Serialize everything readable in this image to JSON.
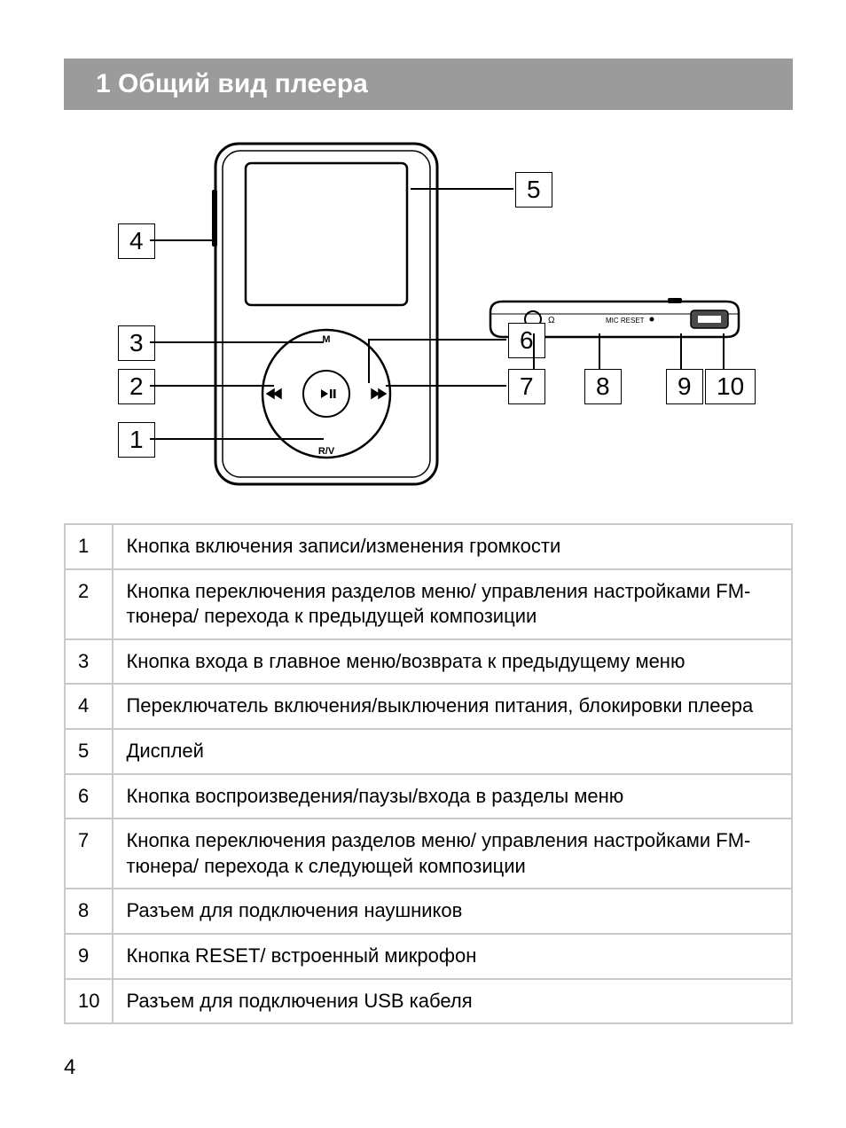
{
  "title": "1 Общий вид плеера",
  "page_number": "4",
  "callouts": {
    "c1": "1",
    "c2": "2",
    "c3": "3",
    "c4": "4",
    "c5": "5",
    "c6": "6",
    "c7": "7",
    "c8": "8",
    "c9": "9",
    "c10": "10"
  },
  "diagram": {
    "wheel_labels": {
      "m": "M",
      "rv": "R/V"
    },
    "side_labels": {
      "mic_reset": "MIC RESET"
    }
  },
  "table": {
    "rows": [
      {
        "n": "1",
        "d": "Кнопка включения записи/изменения громкости"
      },
      {
        "n": "2",
        "d": "Кнопка переключения разделов меню/ управления настройками FM-тюнера/ перехода к предыдущей композиции"
      },
      {
        "n": "3",
        "d": "Кнопка входа в главное меню/возврата к предыдущему меню"
      },
      {
        "n": "4",
        "d": "Переключатель включения/выключения питания, блокировки плеера"
      },
      {
        "n": "5",
        "d": "Дисплей"
      },
      {
        "n": "6",
        "d": "Кнопка воспроизведения/паузы/входа в разделы меню"
      },
      {
        "n": "7",
        "d": "Кнопка переключения разделов меню/ управления настройками FM-тюнера/ перехода к следующей композиции"
      },
      {
        "n": "8",
        "d": "Разъем для подключения наушников"
      },
      {
        "n": "9",
        "d": "Кнопка RESET/ встроенный микрофон"
      },
      {
        "n": "10",
        "d": "Разъем для подключения USB кабеля"
      }
    ]
  },
  "colors": {
    "title_bg": "#9b9b9b",
    "title_fg": "#ffffff",
    "border": "#c9c9c9",
    "line": "#000000",
    "page_bg": "#ffffff"
  }
}
